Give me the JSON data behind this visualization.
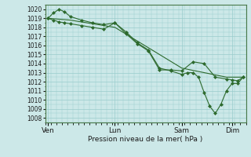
{
  "background_color": "#cce8e8",
  "grid_color": "#99cccc",
  "line_color": "#2d6a2d",
  "xlabel": "Pression niveau de la mer( hPa )",
  "ylim": [
    1007.5,
    1020.5
  ],
  "yticks": [
    1008,
    1009,
    1010,
    1011,
    1012,
    1013,
    1014,
    1015,
    1016,
    1017,
    1018,
    1019,
    1020
  ],
  "xtick_labels": [
    "Ven",
    "Lun",
    "Sam",
    "Dim"
  ],
  "xtick_positions": [
    1,
    25,
    49,
    67
  ],
  "xlim": [
    0,
    72
  ],
  "series1_x": [
    1,
    3,
    5,
    7,
    9,
    13,
    17,
    21,
    25,
    29,
    33,
    37,
    41,
    45,
    49,
    53,
    57,
    61,
    65,
    67,
    69,
    71
  ],
  "series1_y": [
    1019.0,
    1019.6,
    1020.0,
    1019.7,
    1019.2,
    1018.8,
    1018.5,
    1018.3,
    1018.5,
    1017.3,
    1016.2,
    1015.4,
    1013.3,
    1013.3,
    1013.2,
    1014.2,
    1014.0,
    1012.5,
    1012.3,
    1012.2,
    1012.1,
    1012.5
  ],
  "series2_x": [
    1,
    3,
    5,
    7,
    9,
    13,
    17,
    21,
    25,
    29,
    33,
    37,
    41,
    45,
    49,
    51,
    53,
    55,
    57,
    59,
    61,
    63,
    65,
    67,
    69,
    71
  ],
  "series2_y": [
    1019.0,
    1018.8,
    1018.6,
    1018.5,
    1018.4,
    1018.2,
    1018.0,
    1017.8,
    1018.5,
    1017.5,
    1016.3,
    1015.5,
    1013.5,
    1013.2,
    1012.8,
    1013.0,
    1013.0,
    1012.5,
    1010.8,
    1009.3,
    1008.5,
    1009.5,
    1011.0,
    1011.8,
    1011.8,
    1012.5
  ],
  "series3_x": [
    1,
    9,
    17,
    25,
    33,
    41,
    49,
    57,
    65,
    71
  ],
  "series3_y": [
    1019.0,
    1018.8,
    1018.4,
    1018.0,
    1016.5,
    1015.0,
    1013.5,
    1013.0,
    1012.5,
    1012.5
  ],
  "figsize": [
    3.2,
    2.0
  ],
  "dpi": 100
}
